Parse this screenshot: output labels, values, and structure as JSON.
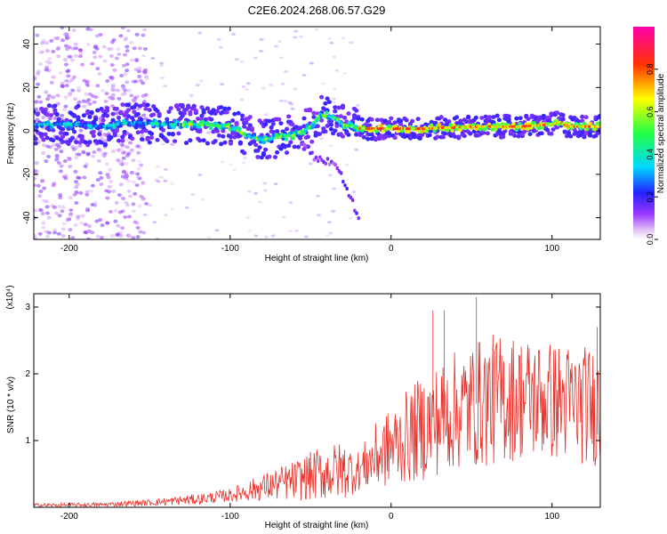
{
  "title": "C2E6.2024.268.06.57.G29",
  "colors": {
    "background": "#ffffff",
    "snr_line": "#e8302a",
    "axis": "#000000"
  },
  "chart_data": [
    {
      "type": "heatmap",
      "xlabel": "Height of straight line (km)",
      "ylabel": "Frequency (Hz)",
      "xlim": [
        -222,
        130
      ],
      "ylim": [
        -50,
        48
      ],
      "xticks": [
        -200,
        -100,
        0,
        100
      ],
      "yticks": [
        -40,
        -20,
        0,
        20,
        40
      ],
      "colorbar": {
        "label": "Normalized spectral amplitude",
        "range": [
          0,
          1
        ],
        "ticks": [
          0.0,
          0.2,
          0.4,
          0.6,
          0.8
        ],
        "tick_labels": [
          "0.0",
          "0.2",
          "0.4",
          "0.6",
          "0.8"
        ],
        "colormap": "rainbow (white → violet → blue → cyan → green → yellow → red → magenta)"
      },
      "ridge": {
        "description": "main spectral ridge (frequency offset vs height)",
        "x": [
          -222,
          -200,
          -180,
          -160,
          -140,
          -120,
          -100,
          -90,
          -80,
          -70,
          -60,
          -50,
          -45,
          -40,
          -35,
          -30,
          -25,
          -20,
          -10,
          0,
          20,
          50,
          80,
          100,
          105,
          110,
          130
        ],
        "y": [
          3,
          3,
          2,
          4,
          3,
          3,
          2,
          -2,
          -4,
          -3,
          -2,
          2,
          7,
          7,
          6,
          3,
          2,
          1,
          1,
          1,
          1,
          2,
          2,
          3,
          4,
          2,
          2
        ]
      },
      "tail": {
        "description": "weak descending trace",
        "x": [
          -55,
          -48,
          -40,
          -33,
          -28,
          -24,
          -20
        ],
        "y": [
          -5,
          -12,
          -14,
          -17,
          -26,
          -33,
          -40
        ]
      }
    },
    {
      "type": "line",
      "xlabel": "Height of straight line (km)",
      "ylabel": "SNR (10 * v/v)",
      "y_multiplier": "(x10⁴)",
      "xlim": [
        -222,
        130
      ],
      "ylim": [
        0,
        3.2
      ],
      "xticks": [
        -200,
        -100,
        0,
        100
      ],
      "yticks": [
        1,
        2,
        3
      ],
      "envelope": {
        "description": "approximate mean SNR (x10^4) vs height; signal is highly noisy around this mean",
        "x": [
          -222,
          -180,
          -150,
          -120,
          -100,
          -80,
          -60,
          -45,
          -30,
          -20,
          -10,
          0,
          20,
          40,
          60,
          80,
          100,
          130
        ],
        "mean": [
          0.03,
          0.04,
          0.07,
          0.12,
          0.18,
          0.3,
          0.4,
          0.5,
          0.55,
          0.55,
          0.75,
          0.9,
          1.2,
          1.45,
          1.6,
          1.65,
          1.6,
          1.5
        ],
        "spread": [
          0.03,
          0.03,
          0.05,
          0.08,
          0.1,
          0.2,
          0.3,
          0.4,
          0.45,
          0.3,
          0.5,
          0.6,
          0.8,
          0.9,
          1.0,
          0.95,
          0.9,
          0.9
        ]
      },
      "notable_peaks": [
        {
          "x": 53,
          "y": 3.15
        },
        {
          "x": 33,
          "y": 2.95
        },
        {
          "x": 26,
          "y": 2.95
        },
        {
          "x": 128,
          "y": 2.7
        }
      ]
    }
  ]
}
